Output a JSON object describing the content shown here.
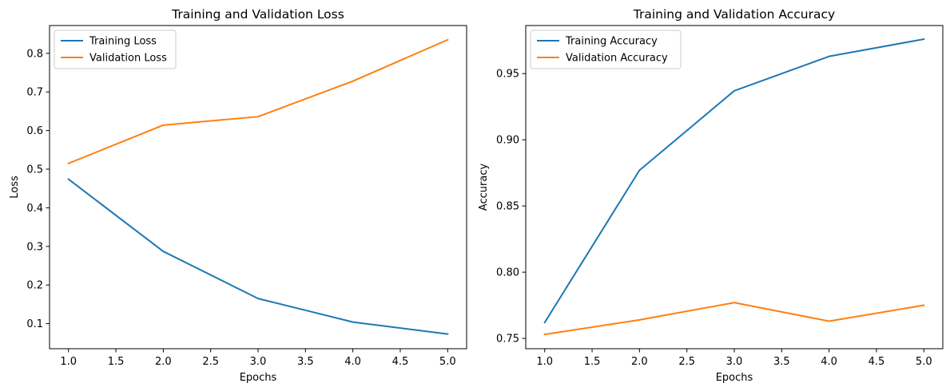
{
  "chart_data": [
    {
      "type": "line",
      "title": "Training and Validation Loss",
      "xlabel": "Epochs",
      "ylabel": "Loss",
      "x": [
        1,
        2,
        3,
        4,
        5
      ],
      "xlim": [
        0.8,
        5.2
      ],
      "ylim": [
        0.035,
        0.872
      ],
      "xticks": [
        1.0,
        1.5,
        2.0,
        2.5,
        3.0,
        3.5,
        4.0,
        4.5,
        5.0
      ],
      "xtick_labels": [
        "1.0",
        "1.5",
        "2.0",
        "2.5",
        "3.0",
        "3.5",
        "4.0",
        "4.5",
        "5.0"
      ],
      "yticks": [
        0.1,
        0.2,
        0.3,
        0.4,
        0.5,
        0.6,
        0.7,
        0.8
      ],
      "ytick_labels": [
        "0.1",
        "0.2",
        "0.3",
        "0.4",
        "0.5",
        "0.6",
        "0.7",
        "0.8"
      ],
      "grid": false,
      "legend_position": "top-left",
      "series": [
        {
          "name": "Training Loss",
          "color": "#1f77b4",
          "values": [
            0.474,
            0.287,
            0.165,
            0.104,
            0.073
          ]
        },
        {
          "name": "Validation Loss",
          "color": "#ff7f0e",
          "values": [
            0.515,
            0.614,
            0.636,
            0.728,
            0.835
          ]
        }
      ]
    },
    {
      "type": "line",
      "title": "Training and Validation Accuracy",
      "xlabel": "Epochs",
      "ylabel": "Accuracy",
      "x": [
        1,
        2,
        3,
        4,
        5
      ],
      "xlim": [
        0.8,
        5.2
      ],
      "ylim": [
        0.7422,
        0.9863
      ],
      "xticks": [
        1.0,
        1.5,
        2.0,
        2.5,
        3.0,
        3.5,
        4.0,
        4.5,
        5.0
      ],
      "xtick_labels": [
        "1.0",
        "1.5",
        "2.0",
        "2.5",
        "3.0",
        "3.5",
        "4.0",
        "4.5",
        "5.0"
      ],
      "yticks": [
        0.75,
        0.8,
        0.85,
        0.9,
        0.95
      ],
      "ytick_labels": [
        "0.75",
        "0.80",
        "0.85",
        "0.90",
        "0.95"
      ],
      "grid": false,
      "legend_position": "top-left",
      "series": [
        {
          "name": "Training Accuracy",
          "color": "#1f77b4",
          "values": [
            0.762,
            0.877,
            0.937,
            0.963,
            0.976
          ]
        },
        {
          "name": "Validation Accuracy",
          "color": "#ff7f0e",
          "values": [
            0.753,
            0.764,
            0.777,
            0.763,
            0.775
          ]
        }
      ]
    }
  ]
}
